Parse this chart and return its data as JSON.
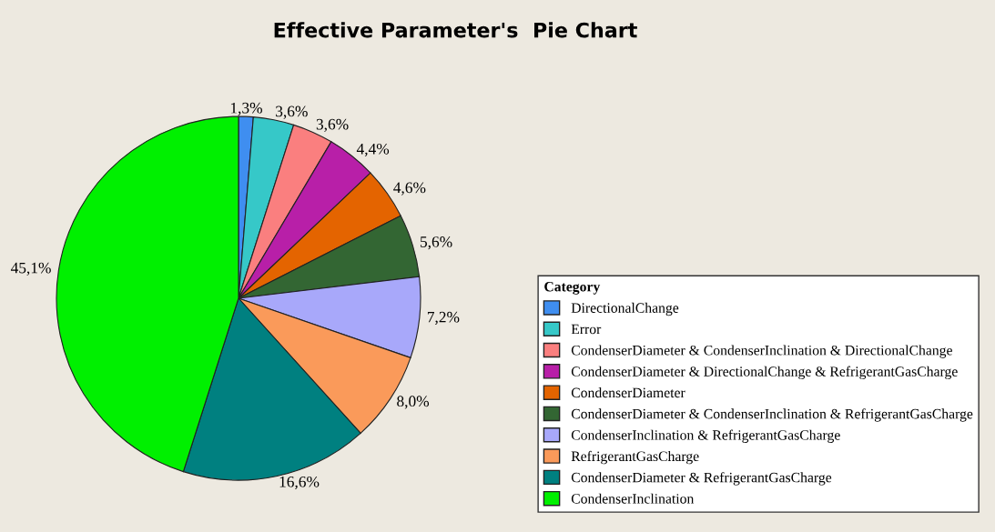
{
  "chart_data": {
    "type": "pie",
    "title": "Effective Parameter's  Pie Chart",
    "legend_title": "Category",
    "legend": "right",
    "categories": [
      "DirectionalChange",
      "Error",
      "CondenserDiameter & CondenserInclination & DirectionalChange",
      "CondenserDiameter & DirectionalChange & RefrigerantGasCharge",
      "CondenserDiameter",
      "CondenserDiameter & CondenserInclination & RefrigerantGasCharge",
      "CondenserInclination & RefrigerantGasCharge",
      "RefrigerantGasCharge",
      "CondenserDiameter & RefrigerantGasCharge",
      "CondenserInclination"
    ],
    "values": [
      1.3,
      3.6,
      3.6,
      4.4,
      4.6,
      5.6,
      7.2,
      8.0,
      16.6,
      45.1
    ],
    "value_labels": [
      "1,3%",
      "3,6%",
      "3,6%",
      "4,4%",
      "4,6%",
      "5,6%",
      "7,2%",
      "8,0%",
      "16,6%",
      "45,1%"
    ],
    "colors": [
      "#3f8ef0",
      "#36c8c8",
      "#fa7f7f",
      "#b81fa8",
      "#e46400",
      "#336633",
      "#a8a8fa",
      "#fa9a5a",
      "#008080",
      "#00f000"
    ]
  }
}
